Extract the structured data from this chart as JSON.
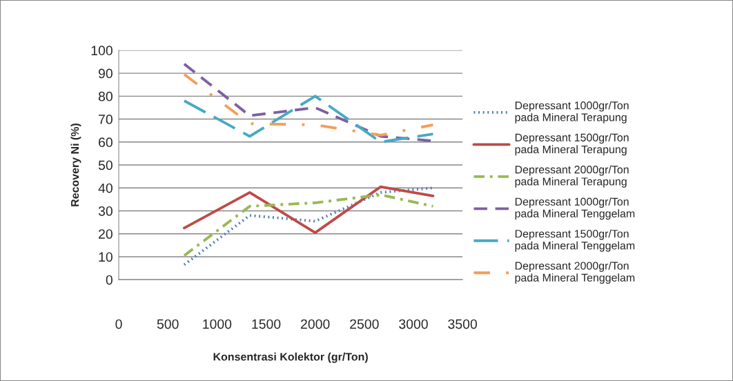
{
  "chart_data": {
    "type": "line",
    "xlabel": "Konsentrasi Kolektor (gr/Ton)",
    "ylabel": "Recovery Ni (%)",
    "xlim": [
      0,
      3500
    ],
    "xticks": [
      0,
      500,
      1000,
      1500,
      2000,
      2500,
      3000,
      3500
    ],
    "ylim": [
      0,
      100
    ],
    "yticks": [
      0,
      10,
      20,
      30,
      40,
      50,
      60,
      70,
      80,
      90,
      100
    ],
    "grid": "y",
    "legend": "right",
    "marker": "none",
    "x": [
      666.67,
      1333.33,
      2000,
      2666.67,
      3200
    ],
    "series": [
      {
        "name": "Depressant 1000gr/Ton pada Mineral Terapung",
        "color": "#4a7ebb",
        "line_style": "dotted",
        "values": [
          6.5,
          28,
          25.5,
          38,
          40
        ]
      },
      {
        "name": "Depressant 1500gr/Ton pada Mineral Terapung",
        "color": "#be4b48",
        "line_style": "solid",
        "values": [
          22.5,
          38,
          20.5,
          40.5,
          36.5
        ]
      },
      {
        "name": "Depressant 2000gr/Ton pada Mineral Terapung",
        "color": "#98b954",
        "line_style": "dashdot",
        "values": [
          10.5,
          32,
          33.5,
          37,
          32
        ]
      },
      {
        "name": "Depressant 1000gr/Ton pada Mineral Tenggelam",
        "color": "#7d60a0",
        "line_style": "dashed",
        "values": [
          94,
          71.5,
          75,
          62.5,
          60.5
        ]
      },
      {
        "name": "Depressant 1500gr/Ton pada Mineral Tenggelam",
        "color": "#46aac5",
        "line_style": "longdash",
        "values": [
          78,
          62.5,
          80,
          60,
          63.5
        ]
      },
      {
        "name": "Depressant 2000gr/Ton pada Mineral Tenggelam",
        "color": "#f59d56",
        "line_style": "sparsedashdot",
        "values": [
          89.5,
          68,
          67.5,
          63,
          67.5
        ]
      }
    ]
  }
}
